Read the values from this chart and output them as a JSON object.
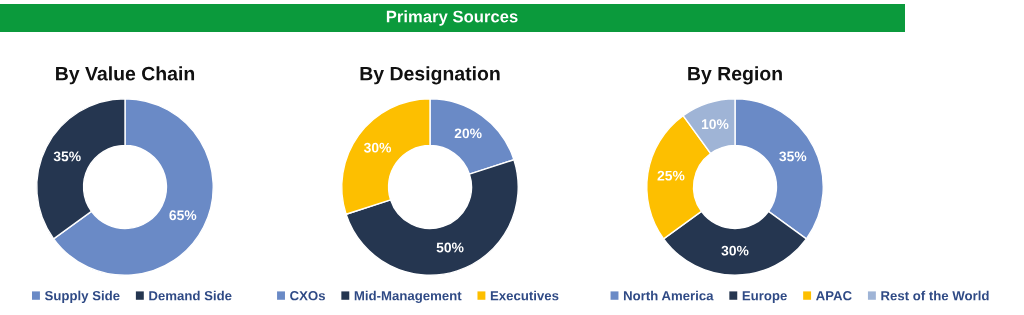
{
  "chart_data": [
    {
      "type": "donut",
      "title": "By Value Chain",
      "annotations": [
        "Primary Sources"
      ],
      "categories": [
        "Supply Side",
        "Demand Side"
      ],
      "values": [
        65,
        35
      ],
      "colors": [
        "#6a8ac6",
        "#253650"
      ],
      "value_labels": [
        "65%",
        "35%"
      ],
      "legend": "bottom"
    },
    {
      "type": "donut",
      "title": "By Designation",
      "categories": [
        "CXOs",
        "Mid-Management",
        "Executives"
      ],
      "values": [
        20,
        50,
        30
      ],
      "colors": [
        "#6a8ac6",
        "#253650",
        "#fdbf00"
      ],
      "value_labels": [
        "20%",
        "50%",
        "30%"
      ],
      "legend": "bottom"
    },
    {
      "type": "donut",
      "title": "By Region",
      "categories": [
        "North America",
        "Europe",
        "APAC",
        "Rest of the World"
      ],
      "values": [
        35,
        30,
        25,
        10
      ],
      "colors": [
        "#6a8ac6",
        "#253650",
        "#fdbf00",
        "#9fb4d6"
      ],
      "value_labels": [
        "35%",
        "30%",
        "25%",
        "10%"
      ],
      "legend": "bottom"
    }
  ]
}
